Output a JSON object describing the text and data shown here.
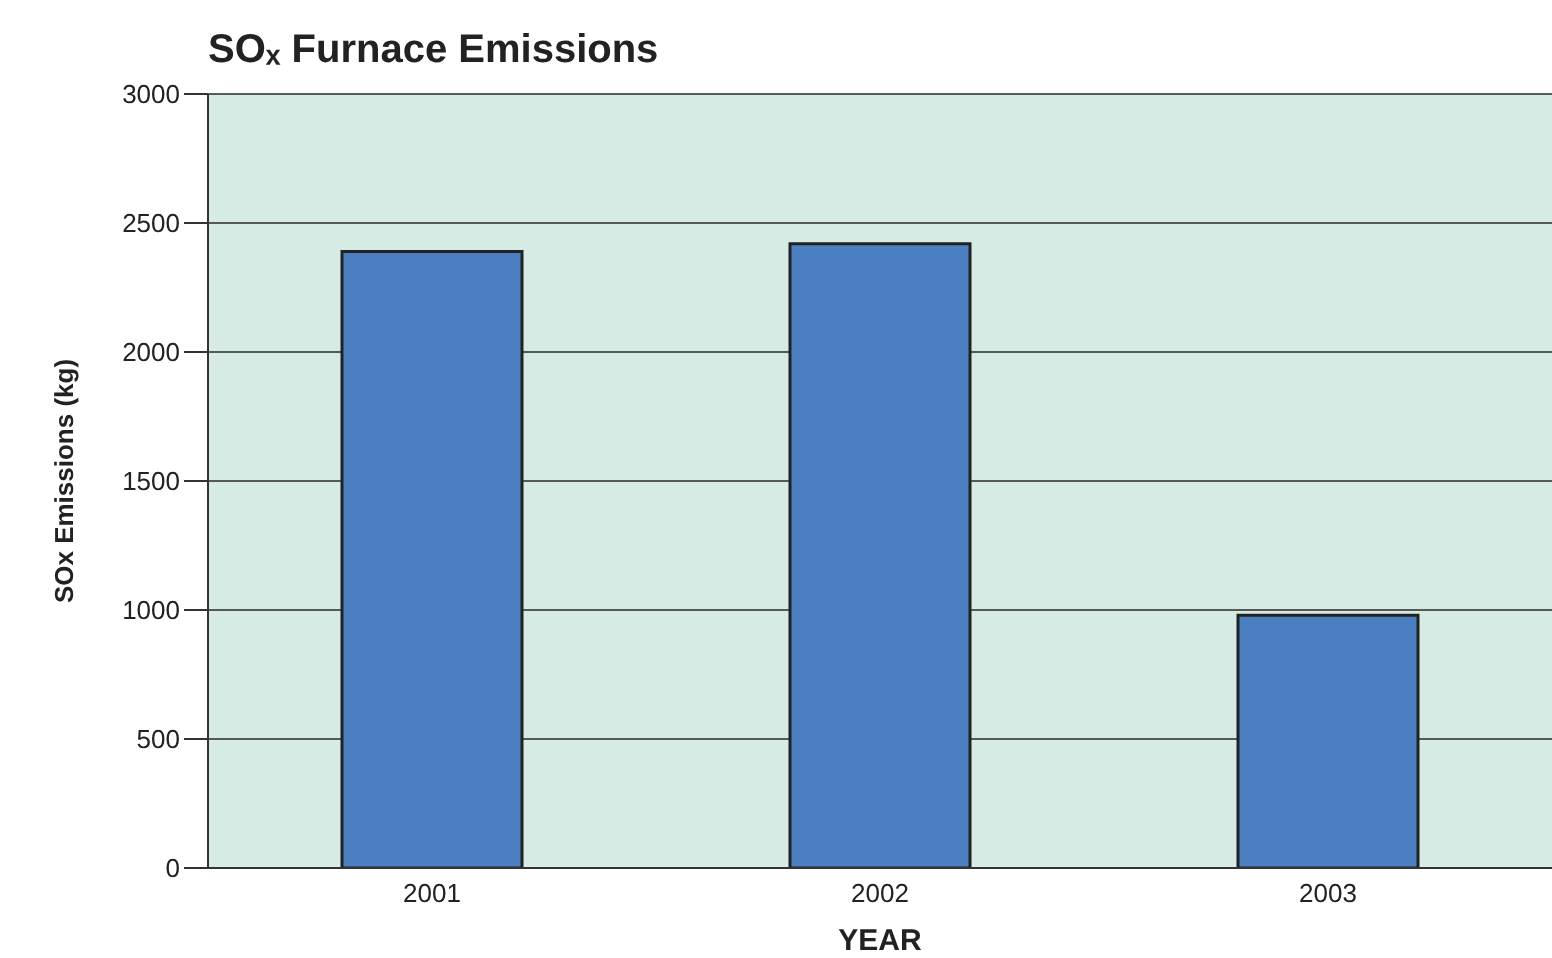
{
  "chart_data": {
    "type": "bar",
    "title": "SOₓ Furnace Emissions",
    "xlabel": "YEAR",
    "ylabel": "SOx Emissions (kg)",
    "categories": [
      "2001",
      "2002",
      "2003"
    ],
    "values": [
      2390,
      2420,
      980
    ],
    "color": "#4a80c2",
    "ylim": [
      0,
      3000
    ],
    "yticks": [
      0,
      500,
      1000,
      1500,
      2000,
      2500,
      3000
    ],
    "grid": "y"
  }
}
